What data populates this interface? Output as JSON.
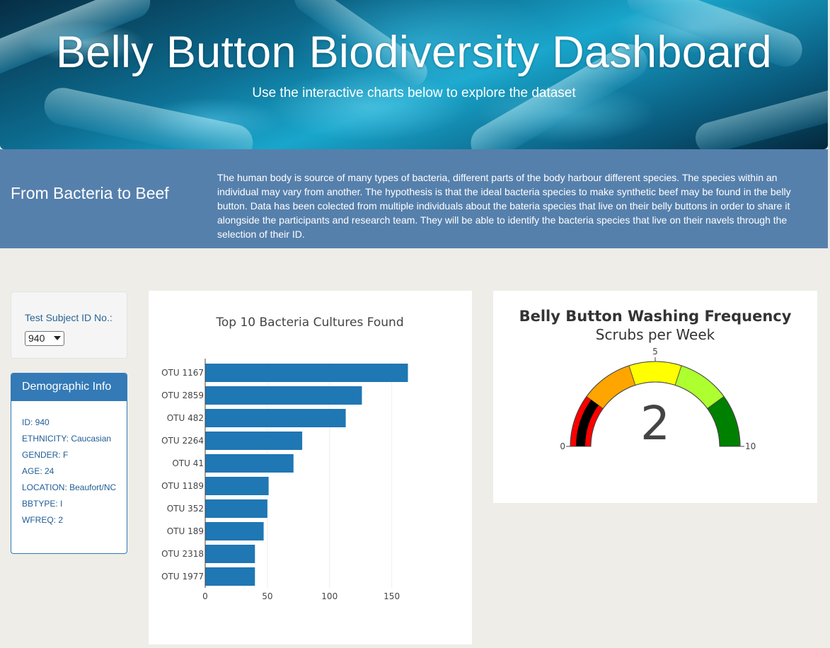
{
  "hero": {
    "title": "Belly Button Biodiversity Dashboard",
    "subtitle": "Use the interactive charts below to explore the dataset"
  },
  "intro": {
    "heading": "From Bacteria to Beef",
    "text": "The human body is source of many types of bacteria, different parts of the body harbour different species. The species within an individual may vary from another. The hypothesis is that the ideal bacteria species to make synthetic beef may be found in the belly button. Data has been colected from multiple individuals about the bateria species that live on their belly buttons in order to share it alongside the participants and research team. They will be able to identify the bacteria species that live on their navels through the selection of their ID."
  },
  "selector": {
    "label": "Test Subject ID No.:",
    "selected": "940"
  },
  "demographic": {
    "heading": "Demographic Info",
    "rows": [
      "ID: 940",
      "ETHNICITY: Caucasian",
      "GENDER: F",
      "AGE: 24",
      "LOCATION: Beaufort/NC",
      "BBTYPE: I",
      "WFREQ: 2"
    ]
  },
  "colors": {
    "accent": "#337ab7",
    "band": "#5680ac",
    "bar": "#1f77b4"
  },
  "chart_data": [
    {
      "type": "bar",
      "orientation": "horizontal",
      "title": "Top 10 Bacteria Cultures Found",
      "categories": [
        "OTU 1167",
        "OTU 2859",
        "OTU 482",
        "OTU 2264",
        "OTU 41",
        "OTU 1189",
        "OTU 352",
        "OTU 189",
        "OTU 2318",
        "OTU 1977"
      ],
      "values": [
        163,
        126,
        113,
        78,
        71,
        51,
        50,
        47,
        40,
        40
      ],
      "xlim": [
        0,
        165
      ],
      "xticks": [
        0,
        50,
        100,
        150
      ],
      "grid": true
    },
    {
      "type": "gauge",
      "title": "Belly Button Washing Frequency",
      "subtitle": "Scrubs per Week",
      "value": 2,
      "range": [
        0,
        10
      ],
      "ticks": [
        0,
        5,
        10
      ],
      "steps": [
        {
          "range": [
            0,
            2
          ],
          "color": "#ff0000"
        },
        {
          "range": [
            2,
            4
          ],
          "color": "#ffa500"
        },
        {
          "range": [
            4,
            6
          ],
          "color": "#ffff00"
        },
        {
          "range": [
            6,
            8
          ],
          "color": "#adff2f"
        },
        {
          "range": [
            8,
            10
          ],
          "color": "#008000"
        }
      ],
      "bar_color": "#000000"
    }
  ]
}
